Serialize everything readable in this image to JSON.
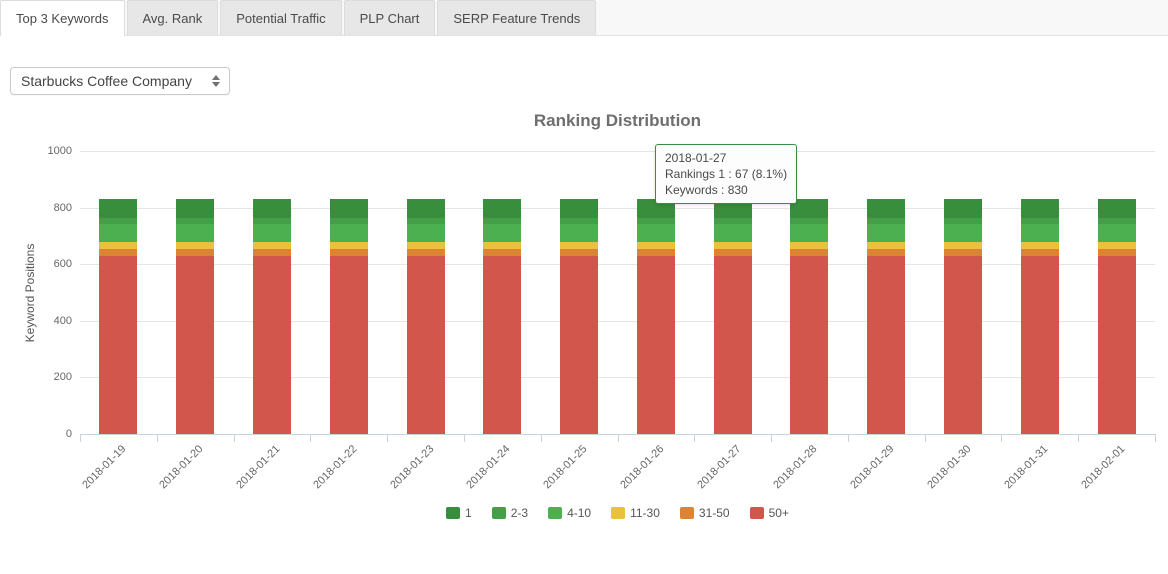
{
  "tabs": [
    {
      "label": "Top 3 Keywords",
      "active": true
    },
    {
      "label": "Avg. Rank",
      "active": false
    },
    {
      "label": "Potential Traffic",
      "active": false
    },
    {
      "label": "PLP Chart",
      "active": false
    },
    {
      "label": "SERP Feature Trends",
      "active": false
    }
  ],
  "site_selector": {
    "value": "Starbucks Coffee Company"
  },
  "chart_data": {
    "type": "bar",
    "stacked": true,
    "title": "Ranking Distribution",
    "xlabel": "",
    "ylabel": "Keyword Positions",
    "ylim": [
      0,
      1000
    ],
    "yticks": [
      0,
      200,
      400,
      600,
      800,
      1000
    ],
    "grid": true,
    "legend_position": "bottom",
    "categories": [
      "2018-01-19",
      "2018-01-20",
      "2018-01-21",
      "2018-01-22",
      "2018-01-23",
      "2018-01-24",
      "2018-01-25",
      "2018-01-26",
      "2018-01-27",
      "2018-01-28",
      "2018-01-29",
      "2018-01-30",
      "2018-01-31",
      "2018-02-01"
    ],
    "series": [
      {
        "name": "1",
        "color": "#388e3c",
        "values": [
          67,
          67,
          67,
          67,
          67,
          67,
          67,
          67,
          67,
          67,
          67,
          67,
          67,
          67
        ]
      },
      {
        "name": "2-3",
        "color": "#43a047",
        "values": [
          21,
          21,
          21,
          21,
          21,
          21,
          21,
          21,
          21,
          21,
          21,
          21,
          21,
          21
        ]
      },
      {
        "name": "4-10",
        "color": "#4caf50",
        "values": [
          62,
          62,
          62,
          62,
          62,
          62,
          62,
          62,
          62,
          62,
          62,
          62,
          62,
          62
        ]
      },
      {
        "name": "11-30",
        "color": "#e8c237",
        "values": [
          28,
          28,
          28,
          28,
          28,
          28,
          28,
          28,
          28,
          28,
          28,
          28,
          28,
          28
        ]
      },
      {
        "name": "31-50",
        "color": "#dd8434",
        "values": [
          23,
          23,
          23,
          23,
          23,
          23,
          23,
          23,
          23,
          23,
          23,
          23,
          23,
          23
        ]
      },
      {
        "name": "50+",
        "color": "#d2564c",
        "values": [
          629,
          629,
          629,
          629,
          629,
          629,
          629,
          629,
          629,
          629,
          629,
          629,
          629,
          629
        ]
      }
    ],
    "keywords_total": 830
  },
  "tooltip": {
    "date": "2018-01-27",
    "rankings_line": "Rankings 1 : 67 (8.1%)",
    "keywords_line": "Keywords : 830",
    "border_color": "#3d8b40"
  }
}
